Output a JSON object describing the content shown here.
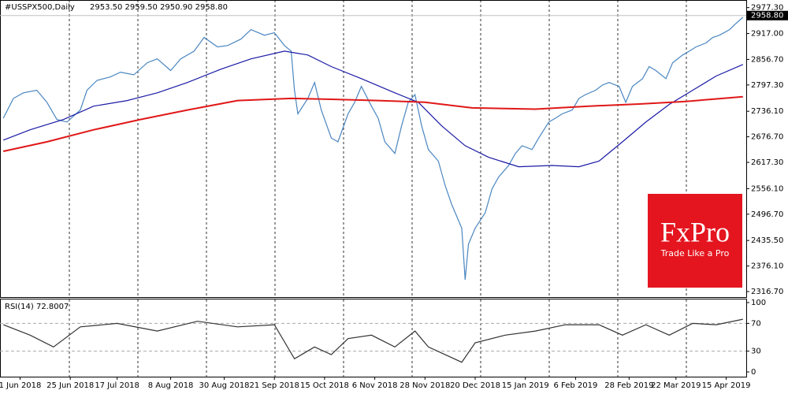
{
  "chart_data": [
    {
      "type": "line",
      "title": "#USSPX500,Daily",
      "ohlc": "2953.50 2959.50 2950.90 2958.80",
      "xlim": [
        0,
        223
      ],
      "ylim": [
        2302,
        2995
      ],
      "xticks": [
        {
          "value": 6,
          "label": "1 Jun 2018"
        },
        {
          "value": 21,
          "label": "25 Jun 2018"
        },
        {
          "value": 35,
          "label": "17 Jul 2018"
        },
        {
          "value": 51,
          "label": "8 Aug 2018"
        },
        {
          "value": 67,
          "label": "30 Aug 2018"
        },
        {
          "value": 82,
          "label": "21 Sep 2018"
        },
        {
          "value": 97,
          "label": "15 Oct 2018"
        },
        {
          "value": 112,
          "label": "6 Nov 2018"
        },
        {
          "value": 127,
          "label": "28 Nov 2018"
        },
        {
          "value": 142,
          "label": "20 Dec 2018"
        },
        {
          "value": 157,
          "label": "15 Jan 2019"
        },
        {
          "value": 172,
          "label": "6 Feb 2019"
        },
        {
          "value": 188,
          "label": "28 Feb 2019"
        },
        {
          "value": 202,
          "label": "22 Mar 2019"
        },
        {
          "value": 217,
          "label": "15 Apr 2019"
        }
      ],
      "yticks": [
        {
          "value": 2977.3,
          "label": "2977.30"
        },
        {
          "value": 2917,
          "label": "2917.00"
        },
        {
          "value": 2856.7,
          "label": "2856.70"
        },
        {
          "value": 2797.3,
          "label": "2797.30"
        },
        {
          "value": 2736.1,
          "label": "2736.10"
        },
        {
          "value": 2676.7,
          "label": "2676.70"
        },
        {
          "value": 2617.3,
          "label": "2617.30"
        },
        {
          "value": 2556.1,
          "label": "2556.10"
        },
        {
          "value": 2496.7,
          "label": "2496.70"
        },
        {
          "value": 2435.5,
          "label": "2435.50"
        },
        {
          "value": 2376.1,
          "label": "2376.10"
        },
        {
          "value": 2316.7,
          "label": "2316.70"
        }
      ],
      "last_price": {
        "value": 2958.8,
        "label": "2958.80"
      },
      "series": [
        {
          "color": "#4a86c0",
          "x": [
            1,
            4,
            7,
            11,
            14,
            17,
            20,
            24,
            26,
            29,
            33,
            36,
            40,
            44,
            47,
            51,
            54,
            58,
            61,
            65,
            68,
            72,
            75,
            79,
            82,
            85,
            87,
            88,
            89,
            92,
            94,
            96,
            99,
            101,
            104,
            106,
            108,
            111,
            113,
            115,
            118,
            120,
            122,
            124,
            126,
            128,
            131,
            133,
            135,
            138,
            139,
            140,
            142,
            145,
            147,
            149,
            152,
            154,
            156,
            159,
            161,
            164,
            166,
            168,
            171,
            173,
            175,
            178,
            180,
            182,
            185,
            187,
            189,
            192,
            194,
            196,
            199,
            201,
            204,
            206,
            208,
            211,
            213,
            215,
            218,
            220,
            222
          ],
          "values": [
            2720,
            2766,
            2779,
            2785,
            2757,
            2717,
            2711,
            2739,
            2785,
            2808,
            2816,
            2827,
            2821,
            2849,
            2858,
            2831,
            2858,
            2876,
            2908,
            2886,
            2889,
            2904,
            2926,
            2913,
            2919,
            2889,
            2876,
            2785,
            2730,
            2766,
            2803,
            2739,
            2674,
            2665,
            2730,
            2757,
            2794,
            2748,
            2720,
            2665,
            2638,
            2702,
            2757,
            2775,
            2702,
            2647,
            2620,
            2564,
            2519,
            2464,
            2344,
            2427,
            2464,
            2500,
            2555,
            2583,
            2610,
            2638,
            2656,
            2647,
            2674,
            2711,
            2720,
            2730,
            2739,
            2766,
            2775,
            2785,
            2797,
            2803,
            2794,
            2757,
            2794,
            2812,
            2840,
            2831,
            2812,
            2849,
            2867,
            2876,
            2886,
            2895,
            2908,
            2913,
            2926,
            2941,
            2955
          ]
        },
        {
          "color": "#1a1aa6",
          "x": [
            1,
            9,
            19,
            28,
            38,
            47,
            56,
            66,
            75,
            85,
            92,
            99,
            108,
            118,
            125,
            132,
            139,
            146,
            155,
            165,
            173,
            179,
            186,
            193,
            200,
            207,
            214,
            222
          ],
          "values": [
            2669,
            2693,
            2717,
            2748,
            2761,
            2779,
            2803,
            2834,
            2858,
            2876,
            2867,
            2840,
            2812,
            2779,
            2757,
            2702,
            2656,
            2629,
            2607,
            2610,
            2607,
            2620,
            2665,
            2711,
            2752,
            2785,
            2818,
            2845
          ]
        },
        {
          "color": "#e01818",
          "x": [
            1,
            14,
            28,
            42,
            56,
            71,
            87,
            99,
            113,
            127,
            141,
            160,
            176,
            191,
            205,
            222
          ],
          "values": [
            2643,
            2665,
            2693,
            2717,
            2739,
            2761,
            2766,
            2764,
            2761,
            2757,
            2744,
            2741,
            2748,
            2753,
            2759,
            2770
          ]
        }
      ]
    },
    {
      "type": "line",
      "title": "RSI(14) 72.8007",
      "xlim": [
        0,
        223
      ],
      "ylim": [
        -6.8,
        104.5
      ],
      "yticks": [
        0,
        30,
        70,
        100
      ],
      "levels": [
        30,
        70
      ],
      "series": [
        {
          "color": "#333333",
          "x": [
            1,
            9,
            16,
            24,
            35,
            47,
            59,
            71,
            82,
            88,
            94,
            99,
            104,
            111,
            118,
            124,
            128,
            138,
            142,
            151,
            160,
            169,
            179,
            186,
            193,
            200,
            207,
            214,
            222
          ],
          "values": [
            68,
            53,
            36,
            65,
            70,
            59,
            73,
            65,
            68,
            19,
            36,
            25,
            48,
            53,
            36,
            59,
            36,
            14,
            42,
            53,
            59,
            68,
            68,
            53,
            68,
            53,
            70,
            68,
            76
          ]
        }
      ]
    }
  ]
}
